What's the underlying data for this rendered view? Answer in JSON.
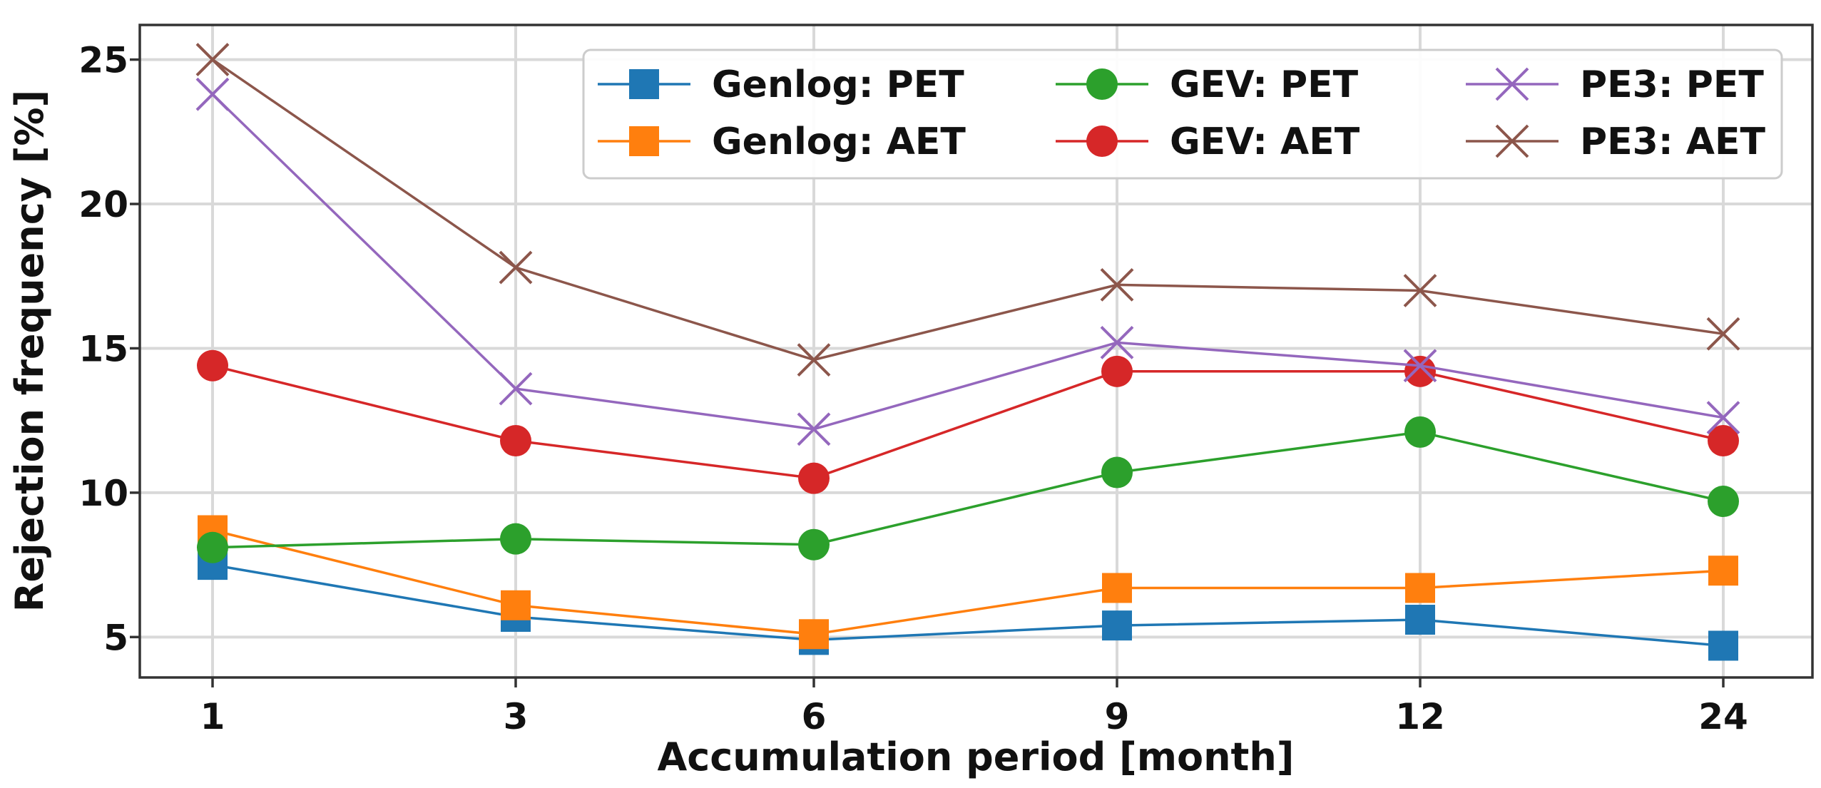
{
  "chart_data": {
    "type": "line",
    "title": "",
    "xlabel": "Accumulation period [month]",
    "ylabel": "Rejection frequency [%]",
    "categories": [
      "1",
      "3",
      "6",
      "9",
      "12",
      "24"
    ],
    "ylim": [
      3.6,
      26.2
    ],
    "yticks": [
      5,
      10,
      15,
      20,
      25
    ],
    "grid": true,
    "legend_position": "top-right",
    "series": [
      {
        "name": "Genlog: PET",
        "color": "#1f77b4",
        "marker": "square",
        "values": [
          7.5,
          5.7,
          4.9,
          5.4,
          5.6,
          4.7
        ]
      },
      {
        "name": "Genlog: AET",
        "color": "#ff7f0e",
        "marker": "square",
        "values": [
          8.7,
          6.1,
          5.1,
          6.7,
          6.7,
          7.3
        ]
      },
      {
        "name": "GEV: PET",
        "color": "#2ca02c",
        "marker": "circle",
        "values": [
          8.1,
          8.4,
          8.2,
          10.7,
          12.1,
          9.7
        ]
      },
      {
        "name": "GEV: AET",
        "color": "#d62728",
        "marker": "circle",
        "values": [
          14.4,
          11.8,
          10.5,
          14.2,
          14.2,
          11.8
        ]
      },
      {
        "name": "PE3: PET",
        "color": "#9467bd",
        "marker": "x",
        "values": [
          23.8,
          13.6,
          12.2,
          15.2,
          14.4,
          12.6
        ]
      },
      {
        "name": "PE3: AET",
        "color": "#8c564b",
        "marker": "x",
        "values": [
          25.0,
          17.8,
          14.6,
          17.2,
          17.0,
          15.5
        ]
      }
    ]
  }
}
